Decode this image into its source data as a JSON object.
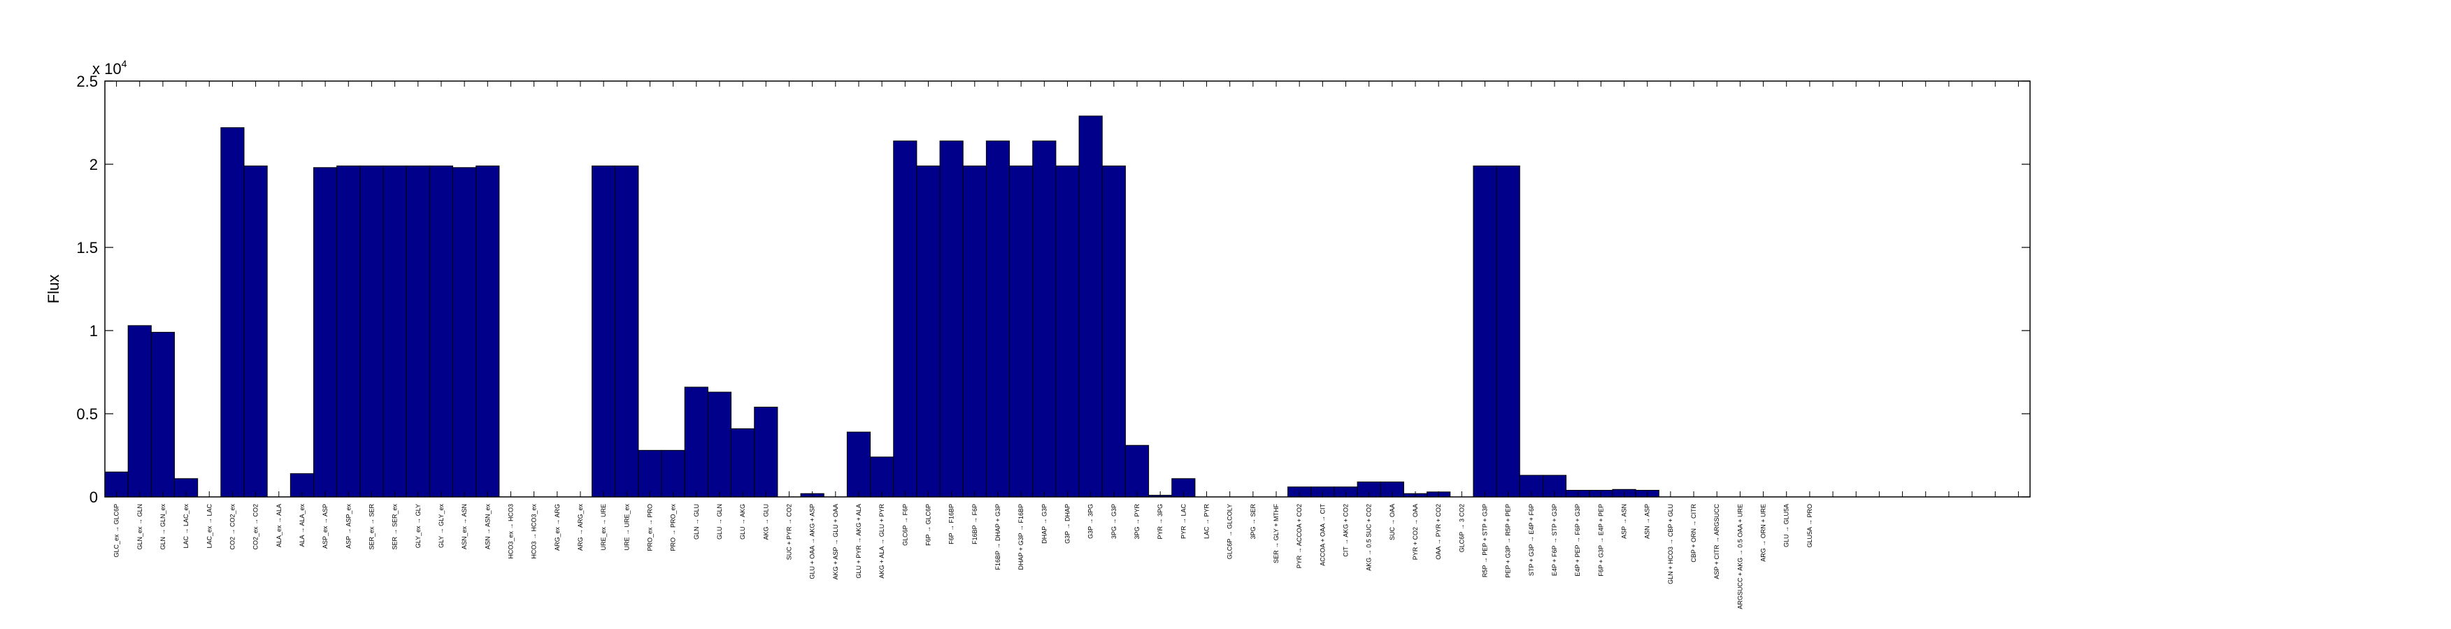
{
  "chart_data": {
    "type": "bar",
    "title": "",
    "xlabel": "",
    "ylabel": "Flux",
    "exponent_label": "x 10",
    "exponent_power": "4",
    "ylim": [
      0,
      2.5
    ],
    "yticks": [
      "0",
      "0.5",
      "1",
      "1.5",
      "2",
      "2.5"
    ],
    "ytick_values": [
      0,
      0.5,
      1,
      1.5,
      2,
      2.5
    ],
    "grid": false,
    "bar_color": "#00008B",
    "bar_edge_color": "#000000",
    "categories": [
      "GLC_ex → GLC6P",
      "GLN_ex → GLN",
      "GLN → GLN_ex",
      "LAC → LAC_ex",
      "LAC_ex → LAC",
      "CO2 → CO2_ex",
      "CO2_ex → CO2",
      "ALA_ex → ALA",
      "ALA → ALA_ex",
      "ASP_ex → ASP",
      "ASP → ASP_ex",
      "SER_ex → SER",
      "SER → SER_ex",
      "GLY_ex → GLY",
      "GLY → GLY_ex",
      "ASN_ex → ASN",
      "ASN → ASN_ex",
      "HCO3_ex → HCO3",
      "HCO3 → HCO3_ex",
      "ARG_ex → ARG",
      "ARG → ARG_ex",
      "URE_ex → URE",
      "URE → URE_ex",
      "PRO_ex → PRO",
      "PRO → PRO_ex",
      "GLN → GLU",
      "GLU → GLN",
      "GLU → AKG",
      "AKG → GLU",
      "SUC + PYR → CO2",
      "GLU + OAA → AKG + ASP",
      "AKG + ASP → GLU + OAA",
      "GLU + PYR → AKG + ALA",
      "AKG + ALA → GLU + PYR",
      "GLC6P → F6P",
      "F6P → GLC6P",
      "F6P → F16BP",
      "F16BP → F6P",
      "F16BP → DHAP + G3P",
      "DHAP + G3P → F16BP",
      "DHAP → G3P",
      "G3P → DHAP",
      "G3P → 3PG",
      "3PG → G3P",
      "3PG → PYR",
      "PYR → 3PG",
      "PYR → LAC",
      "LAC → PYR",
      "GLC6P → GLCOLY",
      "3PG → SER",
      "SER → GLY + MTHF",
      "PYR → ACCOA + CO2",
      "ACCOA + OAA → CIT",
      "CIT → AKG + CO2",
      "AKG → 0.5 SUC + CO2",
      "SUC → OAA",
      "PYR + CO2 → OAA",
      "OAA → PYR + CO2",
      "GLC6P → 3 CO2",
      "R5P → PEP + STP + G3P",
      "PEP + G3P → R5P + PEP",
      "STP + G3P → E4P + F6P",
      "E4P + F6P → STP + G3P",
      "E4P + PEP → F6P + G3P",
      "F6P + G3P → E4P + PEP",
      "ASP → ASN",
      "ASN → ASP",
      "GLN + HCO3 → CBP + GLU",
      "CBP + ORN → CITR",
      "ASP + CITR → ARGSUCC",
      "ARGSUCC + AKG → 0.5 OAA + URE",
      "ARG → ORN + URE",
      "GLU → GLU5A",
      "GLU5A → PRO",
      "",
      "",
      "",
      "",
      "",
      "",
      "",
      "",
      ""
    ],
    "values": [
      0.15,
      1.03,
      0.99,
      0.11,
      0,
      2.22,
      1.99,
      0,
      0.14,
      1.98,
      1.99,
      1.99,
      1.99,
      1.99,
      1.99,
      1.98,
      1.99,
      0,
      0,
      0,
      0,
      1.99,
      1.99,
      0.28,
      0.28,
      0.66,
      0.63,
      0.41,
      0.54,
      0,
      0.02,
      0,
      0.39,
      0.24,
      2.14,
      1.99,
      2.14,
      1.99,
      2.14,
      1.99,
      2.14,
      1.99,
      2.29,
      1.99,
      0.31,
      0.01,
      0.11,
      0,
      0,
      0,
      0,
      0.06,
      0.06,
      0.06,
      0.09,
      0.09,
      0.02,
      0.03,
      0,
      1.99,
      1.99,
      0.13,
      0.13,
      0.04,
      0.04,
      0.045,
      0.04,
      0,
      0,
      0,
      0,
      0,
      0,
      0,
      0,
      0,
      0,
      0,
      0,
      0,
      0,
      0,
      0
    ]
  }
}
